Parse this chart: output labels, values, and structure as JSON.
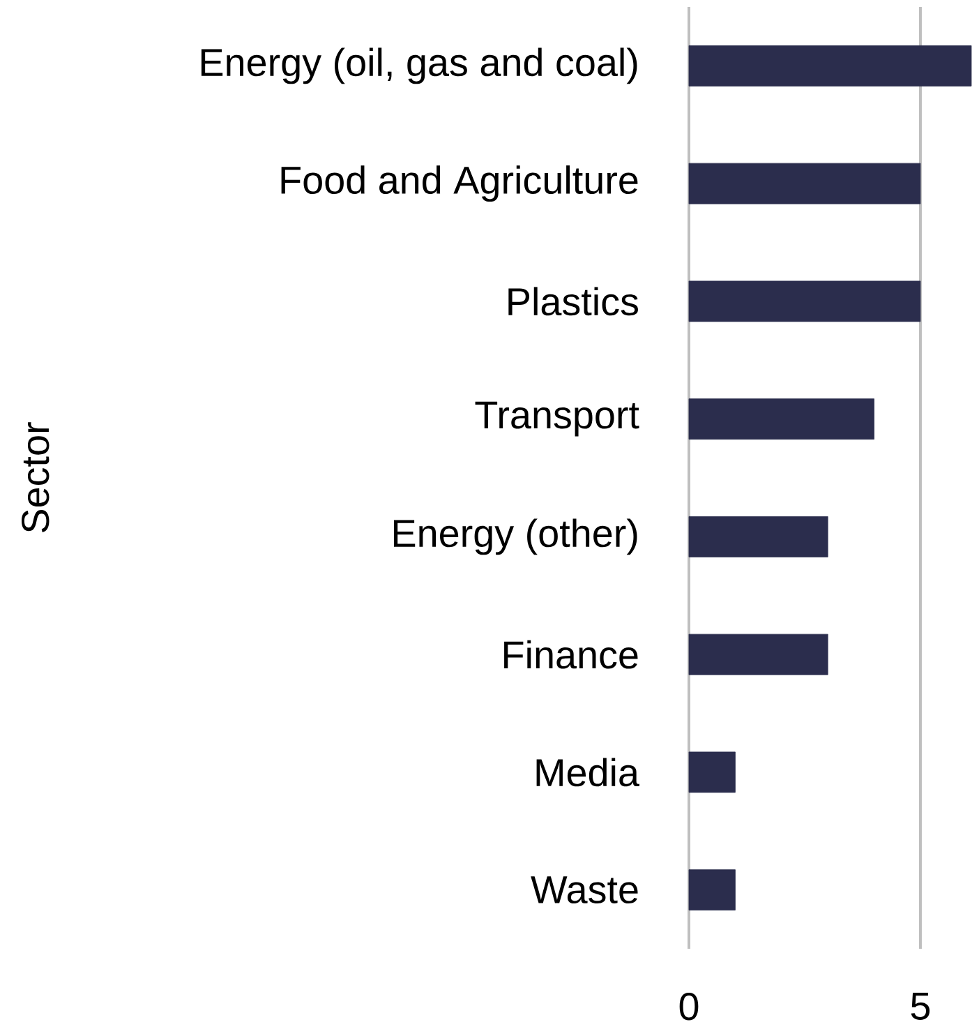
{
  "chart_data": {
    "type": "bar",
    "orientation": "horizontal",
    "ylabel": "Sector",
    "categories": [
      "Energy (oil, gas and coal)",
      "Food and Agriculture",
      "Plastics",
      "Transport",
      "Energy (other)",
      "Finance",
      "Media",
      "Waste"
    ],
    "values": [
      6.1,
      5,
      5,
      4,
      3,
      3,
      1,
      1
    ],
    "color": "#2b2d4d",
    "xlim": [
      0,
      6.1
    ],
    "xticks": [
      0,
      5
    ],
    "grid": "x"
  }
}
